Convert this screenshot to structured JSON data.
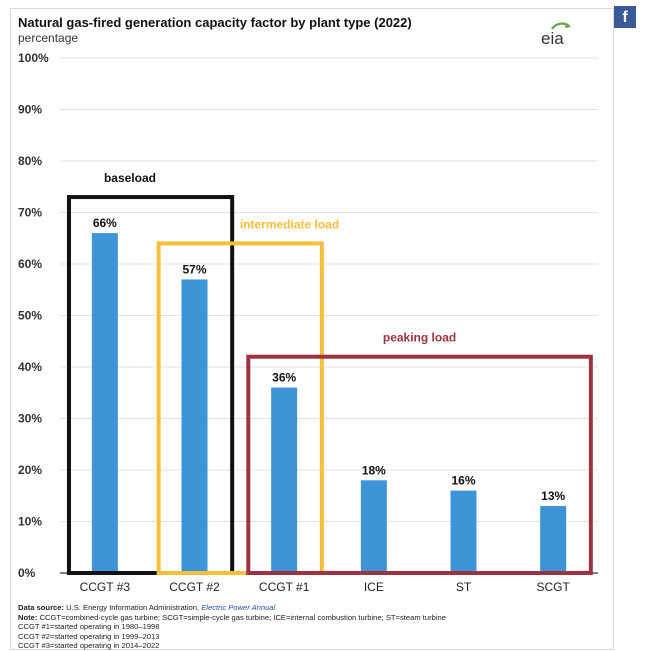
{
  "header": {
    "title": "Natural gas-fired generation capacity factor by plant type (2022)",
    "subtitle": "percentage",
    "logo_text": "eia",
    "share_icon": "facebook-icon",
    "share_glyph": "f"
  },
  "chart_data": {
    "type": "bar",
    "title": "Natural gas-fired generation capacity factor by plant type (2022)",
    "ylabel": "percentage",
    "categories": [
      "CCGT #3",
      "CCGT #2",
      "CCGT #1",
      "ICE",
      "ST",
      "SCGT"
    ],
    "values": [
      66,
      57,
      36,
      18,
      16,
      13
    ],
    "data_labels": [
      "66%",
      "57%",
      "36%",
      "18%",
      "16%",
      "13%"
    ],
    "ylim": [
      0,
      100
    ],
    "yticks": [
      0,
      10,
      20,
      30,
      40,
      50,
      60,
      70,
      80,
      90,
      100
    ],
    "ytick_labels": [
      "0%",
      "10%",
      "20%",
      "30%",
      "40%",
      "50%",
      "60%",
      "70%",
      "80%",
      "90%",
      "100%"
    ],
    "grid": true,
    "bar_color": "#3d94d6",
    "groups": [
      {
        "label": "baseload",
        "color": "#111111",
        "categories": [
          "CCGT #3",
          "CCGT #2"
        ],
        "top": 73
      },
      {
        "label": "intermediate load",
        "color": "#f4bf3a",
        "categories": [
          "CCGT #2",
          "CCGT #1"
        ],
        "top": 64
      },
      {
        "label": "peaking load",
        "color": "#9b3440",
        "categories": [
          "CCGT #1",
          "ICE",
          "ST",
          "SCGT"
        ],
        "top": 42
      }
    ]
  },
  "footer": {
    "source_label": "Data source:",
    "source_text": "U.S. Energy Information Administration,",
    "source_link": "Electric Power Annual",
    "note_label": "Note:",
    "note_text": "CCGT=combined-cycle gas turbine; SCGT=simple-cycle gas turbine; ICE=internal combustion turbine; ST=steam turbine",
    "lines": [
      "CCGT #1=started operating in 1980–1998",
      "CCGT #2=started operating in 1999–2013",
      "CCGT #3=started operating in 2014–2022"
    ]
  }
}
